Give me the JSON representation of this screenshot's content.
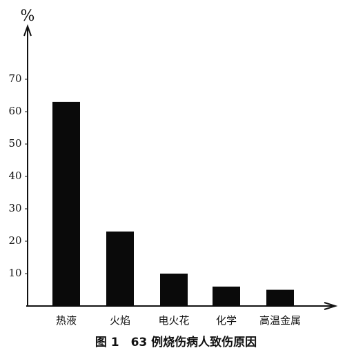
{
  "chart_data": {
    "type": "bar",
    "title": "图 1　63 例烧伤病人致伤原因",
    "y_label": "%",
    "categories": [
      "热液",
      "火焰",
      "电火花",
      "化学",
      "高温金属"
    ],
    "values": [
      63,
      23,
      10,
      6,
      5
    ],
    "color": "#0a0a0a",
    "ylim": [
      0,
      85
    ],
    "yticks": [
      10,
      20,
      30,
      40,
      50,
      60,
      70
    ],
    "grid": false
  }
}
